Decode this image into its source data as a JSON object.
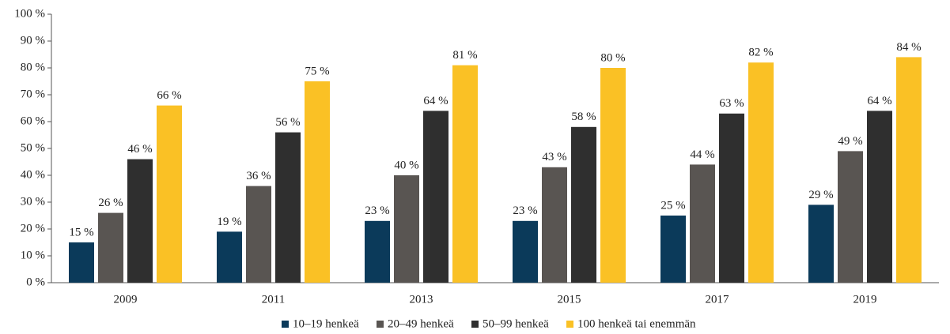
{
  "chart_data": {
    "type": "bar",
    "categories": [
      "2009",
      "2011",
      "2013",
      "2015",
      "2017",
      "2019"
    ],
    "series": [
      {
        "name": "10–19 henkeä",
        "color": "#0b3a5a",
        "values": [
          15,
          19,
          23,
          23,
          25,
          29
        ],
        "value_labels": [
          "15 %",
          "19 %",
          "23 %",
          "23 %",
          "25 %",
          "29 %"
        ]
      },
      {
        "name": "20–49 henkeä",
        "color": "#595552",
        "values": [
          26,
          36,
          40,
          43,
          44,
          49
        ],
        "value_labels": [
          "26 %",
          "36 %",
          "40 %",
          "43 %",
          "44 %",
          "49 %"
        ]
      },
      {
        "name": "50–99 henkeä",
        "color": "#2f2f2f",
        "values": [
          46,
          56,
          64,
          58,
          63,
          64
        ],
        "value_labels": [
          "46 %",
          "56 %",
          "64 %",
          "58 %",
          "63 %",
          "64 %"
        ]
      },
      {
        "name": "100 henkeä tai enemmän",
        "color": "#fac125",
        "values": [
          66,
          75,
          81,
          80,
          82,
          84
        ],
        "value_labels": [
          "66 %",
          "75 %",
          "81 %",
          "80 %",
          "82 %",
          "84 %"
        ]
      }
    ],
    "ylim": [
      0,
      100
    ],
    "yticks": [
      {
        "value": 0,
        "label": "0 %"
      },
      {
        "value": 10,
        "label": "10 %"
      },
      {
        "value": 20,
        "label": "20 %"
      },
      {
        "value": 30,
        "label": "30 %"
      },
      {
        "value": 40,
        "label": "40 %"
      },
      {
        "value": 50,
        "label": "50 %"
      },
      {
        "value": 60,
        "label": "60 %"
      },
      {
        "value": 70,
        "label": "70 %"
      },
      {
        "value": 80,
        "label": "80 %"
      },
      {
        "value": 90,
        "label": "90 %"
      },
      {
        "value": 100,
        "label": "100 %"
      }
    ],
    "legend": "bottom"
  }
}
